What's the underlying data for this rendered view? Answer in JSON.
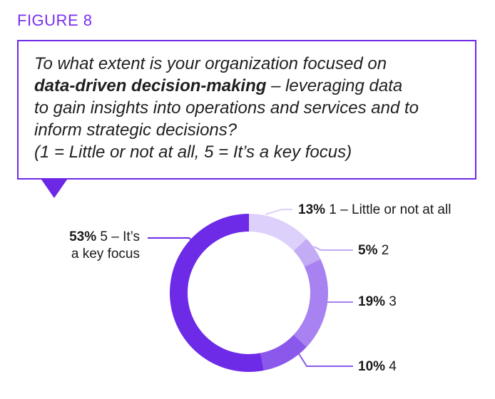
{
  "figure_label": "FIGURE 8",
  "question": {
    "line1": "To what extent is your organization focused on",
    "line2_bold": "data-driven decision-making",
    "line2_rest": " – leveraging data",
    "line3": "to gain insights into operations and services and to",
    "line4": "inform strategic decisions?",
    "line5": "(1 = Little or not at all, 5 = It’s a key focus)"
  },
  "colors": {
    "accent": "#6d28e6",
    "figure_label": "#7a2ff0"
  },
  "chart_data": {
    "type": "pie",
    "donut": true,
    "slices": [
      {
        "pct_label": "13%",
        "name": "1 – Little or not at all",
        "value": 13,
        "color": "#ddd0fa"
      },
      {
        "pct_label": "5%",
        "name": "2",
        "value": 5,
        "color": "#c4abf5"
      },
      {
        "pct_label": "19%",
        "name": "3",
        "value": 19,
        "color": "#a782f0"
      },
      {
        "pct_label": "10%",
        "name": "4",
        "value": 10,
        "color": "#8a59ec"
      },
      {
        "pct_label": "53%",
        "name": "5 – It’s",
        "name_line2": "a key focus",
        "value": 53,
        "color": "#6d2be8"
      }
    ]
  }
}
